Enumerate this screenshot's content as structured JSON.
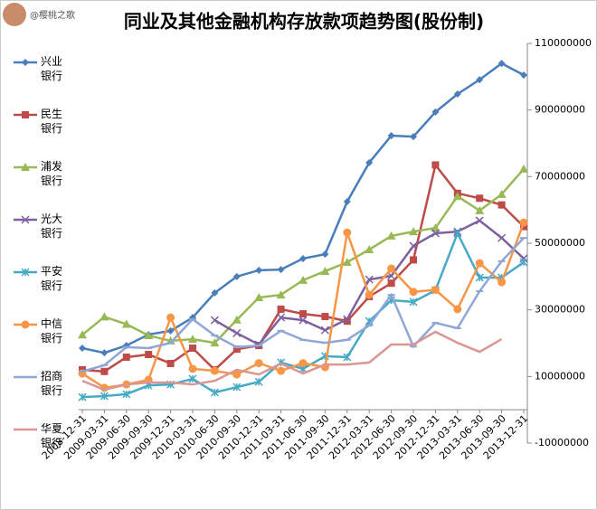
{
  "watermark": "@樱桃之歌",
  "chart_data": {
    "type": "line",
    "title": "同业及其他金融机构存放款项趋势图(股份制)",
    "categories": [
      "2008-12-31",
      "2009-03-31",
      "2009-06-30",
      "2009-09-30",
      "2009-12-31",
      "2010-03-31",
      "2010-06-30",
      "2010-09-30",
      "2010-12-31",
      "2011-03-31",
      "2011-06-30",
      "2011-09-30",
      "2011-12-31",
      "2012-03-31",
      "2012-06-30",
      "2012-09-30",
      "2012-12-31",
      "2013-03-31",
      "2013-06-30",
      "2013-09-30",
      "2013-12-31"
    ],
    "ylim": [
      -10000000,
      110000000
    ],
    "yticks": [
      -10000000,
      10000000,
      30000000,
      50000000,
      70000000,
      90000000,
      110000000
    ],
    "grid": false,
    "legend": "left",
    "series": [
      {
        "name": "兴业银行",
        "color": "#4a7ebb",
        "marker": "diamond",
        "values": [
          18500000,
          17100000,
          19300000,
          22600000,
          23700000,
          27700000,
          35100000,
          40000000,
          41900000,
          42100000,
          45400000,
          46700000,
          62500000,
          74200000,
          82300000,
          82000000,
          89400000,
          94800000,
          99100000,
          104000000,
          100500000
        ]
      },
      {
        "name": "民生银行",
        "color": "#be4b48",
        "marker": "square",
        "values": [
          12000000,
          11500000,
          15800000,
          16600000,
          13900000,
          18500000,
          12000000,
          18200000,
          19300000,
          30200000,
          28800000,
          28000000,
          26600000,
          34000000,
          38000000,
          45000000,
          73500000,
          65000000,
          63500000,
          61500000,
          55000000
        ]
      },
      {
        "name": "浦发银行",
        "color": "#98b954",
        "marker": "triangle",
        "values": [
          22500000,
          27900000,
          25700000,
          22300000,
          20700000,
          21200000,
          20100000,
          27000000,
          33700000,
          34500000,
          38900000,
          41600000,
          44300000,
          48100000,
          52200000,
          53500000,
          54600000,
          64100000,
          59800000,
          64700000,
          72300000
        ]
      },
      {
        "name": "光大银行",
        "color": "#7d60a0",
        "marker": "x",
        "values": [
          null,
          null,
          null,
          null,
          null,
          null,
          26900000,
          23000000,
          19600000,
          27700000,
          26900000,
          23900000,
          27200000,
          39100000,
          40200000,
          49200000,
          53000000,
          53500000,
          56800000,
          51600000,
          45400000
        ]
      },
      {
        "name": "平安银行",
        "color": "#46aac5",
        "marker": "star",
        "values": [
          3800000,
          4100000,
          4700000,
          7300000,
          7600000,
          9300000,
          5200000,
          6800000,
          8400000,
          14200000,
          12300000,
          16100000,
          15800000,
          26600000,
          32900000,
          32400000,
          35900000,
          53000000,
          39700000,
          39700000,
          44300000
        ]
      },
      {
        "name": "中信银行",
        "color": "#f79646",
        "marker": "circle",
        "values": [
          10900000,
          6600000,
          7600000,
          9000000,
          27700000,
          12300000,
          11700000,
          10600000,
          14000000,
          11700000,
          14000000,
          12800000,
          53200000,
          34500000,
          42400000,
          35400000,
          36000000,
          30200000,
          44000000,
          38300000,
          56200000
        ]
      },
      {
        "name": "招商银行",
        "color": "#8fa7d6",
        "marker": "plus",
        "values": [
          11500000,
          13400000,
          18800000,
          18500000,
          20100000,
          27200000,
          22300000,
          18800000,
          19300000,
          23700000,
          21000000,
          20100000,
          21000000,
          25300000,
          34500000,
          19000000,
          26100000,
          24500000,
          35600000,
          44600000,
          51600000
        ]
      },
      {
        "name": "华夏银行",
        "color": "#d99694",
        "marker": "none",
        "values": [
          8700000,
          6000000,
          7600000,
          8200000,
          8200000,
          7600000,
          8700000,
          12000000,
          10600000,
          13900000,
          10900000,
          13600000,
          13600000,
          14200000,
          19600000,
          19600000,
          23400000,
          20100000,
          17400000,
          21200000,
          null
        ]
      }
    ]
  }
}
